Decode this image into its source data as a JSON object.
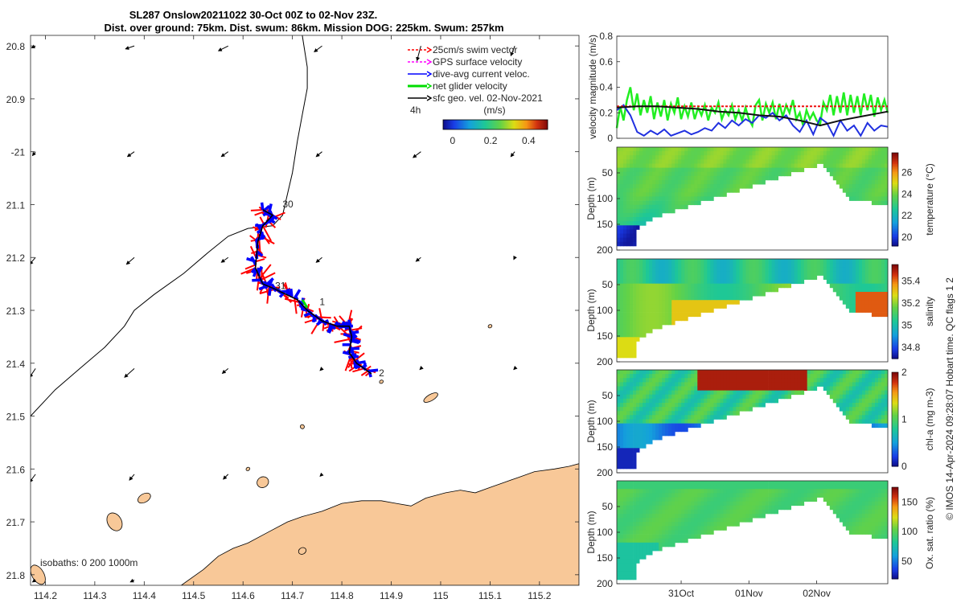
{
  "chart_data": [
    {
      "type": "map",
      "title_line1": "SL287 Onslow20211022 30-Oct 00Z to 02-Nov 23Z.",
      "title_line2": "Dist. over ground: 75km. Dist. swum: 86km. Mission DOG: 225km. Swum: 257km",
      "xlim": [
        114.17,
        115.28
      ],
      "ylim": [
        -21.82,
        -20.78
      ],
      "xticks": [
        114.2,
        114.3,
        114.4,
        114.5,
        114.6,
        114.7,
        114.8,
        114.9,
        115,
        115.1,
        115.2
      ],
      "xtick_labels": [
        "114.2",
        "114.3",
        "114.4",
        "114.5",
        "114.6",
        "114.7",
        "114.8",
        "114.9",
        "115",
        "115.1",
        "115.2"
      ],
      "yticks": [
        -20.8,
        -20.9,
        -21,
        -21.1,
        -21.2,
        -21.3,
        -21.4,
        -21.5,
        -21.6,
        -21.7,
        -21.8
      ],
      "ytick_labels": [
        "20.8",
        "20.9",
        "-21",
        "21.1",
        "21.2",
        "21.3",
        "21.4",
        "21.5",
        "21.6",
        "21.7",
        "21.8"
      ],
      "legend": {
        "location": "top-right",
        "entries": [
          {
            "label": "25cm/s swim vector",
            "color": "#ff0000",
            "style": "dashed"
          },
          {
            "label": "GPS surface velocity",
            "color": "#ff00ff",
            "style": "dashed"
          },
          {
            "label": "dive-avg current veloc.",
            "color": "#0000ff",
            "style": "solid"
          },
          {
            "label": "net glider velocity",
            "color": "#00dd00",
            "style": "thick"
          },
          {
            "label": "sfc geo. vel. 02-Nov-2021",
            "color": "#000000",
            "style": "solid"
          }
        ],
        "extra": "4h"
      },
      "colorbar": {
        "label": "(m/s)",
        "min": -0.05,
        "max": 0.5,
        "ticks": [
          0,
          0.2,
          0.4
        ],
        "tick_labels": [
          "0",
          "0.2",
          "0.4"
        ]
      },
      "isobath_label": "isobaths: 0   200  1000m",
      "track_labels": [
        "30",
        "31",
        "1",
        "2"
      ],
      "track": [
        [
          114.64,
          -21.11
        ],
        [
          114.66,
          -21.12
        ],
        [
          114.64,
          -21.14
        ],
        [
          114.63,
          -21.17
        ],
        [
          114.625,
          -21.22
        ],
        [
          114.64,
          -21.25
        ],
        [
          114.665,
          -21.26
        ],
        [
          114.71,
          -21.28
        ],
        [
          114.73,
          -21.3
        ],
        [
          114.76,
          -21.32
        ],
        [
          114.79,
          -21.33
        ],
        [
          114.815,
          -21.33
        ],
        [
          114.82,
          -21.35
        ],
        [
          114.815,
          -21.38
        ],
        [
          114.83,
          -21.4
        ],
        [
          114.86,
          -21.42
        ]
      ],
      "coastline_main": [
        [
          114.475,
          -21.82
        ],
        [
          114.52,
          -21.79
        ],
        [
          114.55,
          -21.765
        ],
        [
          114.58,
          -21.75
        ],
        [
          114.61,
          -21.74
        ],
        [
          114.65,
          -21.72
        ],
        [
          114.69,
          -21.7
        ],
        [
          114.72,
          -21.69
        ],
        [
          114.76,
          -21.68
        ],
        [
          114.8,
          -21.665
        ],
        [
          114.84,
          -21.66
        ],
        [
          114.88,
          -21.66
        ],
        [
          114.91,
          -21.665
        ],
        [
          114.94,
          -21.67
        ],
        [
          114.97,
          -21.655
        ],
        [
          115.01,
          -21.645
        ],
        [
          115.04,
          -21.64
        ],
        [
          115.07,
          -21.645
        ],
        [
          115.1,
          -21.635
        ],
        [
          115.13,
          -21.625
        ],
        [
          115.16,
          -21.615
        ],
        [
          115.19,
          -21.605
        ],
        [
          115.23,
          -21.6
        ],
        [
          115.26,
          -21.595
        ],
        [
          115.28,
          -21.59
        ]
      ],
      "coastline_mainland_edge": [
        [
          115.28,
          -21.82
        ]
      ],
      "isobath_200m": [
        [
          114.17,
          -21.5
        ],
        [
          114.22,
          -21.45
        ],
        [
          114.27,
          -21.41
        ],
        [
          114.32,
          -21.37
        ],
        [
          114.36,
          -21.33
        ],
        [
          114.38,
          -21.3
        ],
        [
          114.42,
          -21.27
        ],
        [
          114.48,
          -21.23
        ],
        [
          114.53,
          -21.19
        ],
        [
          114.57,
          -21.16
        ],
        [
          114.61,
          -21.145
        ],
        [
          114.66,
          -21.14
        ],
        [
          114.68,
          -21.12
        ],
        [
          114.69,
          -21.08
        ],
        [
          114.7,
          -21.04
        ],
        [
          114.71,
          -20.98
        ],
        [
          114.72,
          -20.93
        ],
        [
          114.73,
          -20.88
        ],
        [
          114.73,
          -20.84
        ],
        [
          114.72,
          -20.78
        ]
      ],
      "islands": [
        {
          "center": [
            114.98,
            -21.465
          ],
          "rx": 0.016,
          "ry": 0.006
        },
        {
          "center": [
            114.4,
            -21.655
          ],
          "rx": 0.014,
          "ry": 0.008
        },
        {
          "center": [
            114.34,
            -21.7
          ],
          "rx": 0.014,
          "ry": 0.018
        },
        {
          "center": [
            114.64,
            -21.625
          ],
          "rx": 0.012,
          "ry": 0.01
        },
        {
          "center": [
            114.72,
            -21.755
          ],
          "rx": 0.008,
          "ry": 0.006
        },
        {
          "center": [
            114.185,
            -21.8
          ],
          "rx": 0.012,
          "ry": 0.02
        },
        {
          "center": [
            114.61,
            -21.6
          ],
          "rx": 0.004,
          "ry": 0.003
        },
        {
          "center": [
            114.72,
            -21.52
          ],
          "rx": 0.004,
          "ry": 0.004
        },
        {
          "center": [
            115.1,
            -21.33
          ],
          "rx": 0.004,
          "ry": 0.003
        },
        {
          "center": [
            114.88,
            -21.435
          ],
          "rx": 0.004,
          "ry": 0.003
        }
      ],
      "vector_grid": [
        [
          114.18,
          -20.8,
          0.008,
          0.004
        ],
        [
          114.38,
          -20.8,
          0.018,
          0.006
        ],
        [
          114.57,
          -20.8,
          0.02,
          0.01
        ],
        [
          114.76,
          -20.8,
          0.016,
          0.012
        ],
        [
          114.96,
          -20.8,
          0.008,
          0.03
        ],
        [
          115.15,
          -20.8,
          0.008,
          0.02
        ],
        [
          114.18,
          -21.0,
          0.006,
          0.008
        ],
        [
          114.38,
          -21.0,
          0.014,
          0.01
        ],
        [
          114.57,
          -21.0,
          0.014,
          0.01
        ],
        [
          114.76,
          -21.0,
          0.012,
          0.01
        ],
        [
          114.96,
          -21.0,
          0.016,
          0.012
        ],
        [
          115.15,
          -21.0,
          0.008,
          0.01
        ],
        [
          114.18,
          -21.2,
          0.012,
          0.014
        ],
        [
          114.38,
          -21.2,
          0.016,
          0.014
        ],
        [
          114.57,
          -21.2,
          0.014,
          0.01
        ],
        [
          114.76,
          -21.2,
          0.012,
          0.01
        ],
        [
          114.96,
          -21.2,
          0.01,
          0.008
        ],
        [
          115.15,
          -21.2,
          0.002,
          0.004
        ],
        [
          114.18,
          -21.41,
          0.012,
          0.018
        ],
        [
          114.38,
          -21.41,
          0.02,
          0.018
        ],
        [
          114.57,
          -21.41,
          0.012,
          0.01
        ],
        [
          114.76,
          -21.41,
          0.004,
          0.004
        ],
        [
          114.96,
          -21.41,
          0.002,
          0.002
        ],
        [
          115.15,
          -21.41,
          0.002,
          0.002
        ],
        [
          114.18,
          -21.61,
          0.012,
          0.016
        ],
        [
          114.38,
          -21.61,
          0.01,
          0.012
        ],
        [
          114.57,
          -21.61,
          0.01,
          0.01
        ],
        [
          114.76,
          -21.61,
          0.004,
          0.004
        ],
        [
          114.18,
          -21.81,
          0.006,
          0.004
        ],
        [
          114.38,
          -21.81,
          0.008,
          0.004
        ]
      ]
    },
    {
      "type": "line",
      "ylabel": "velocity magnitude (m/s)",
      "ylim": [
        0,
        0.8
      ],
      "yticks": [
        0,
        0.2,
        0.4,
        0.6,
        0.8
      ],
      "ytick_labels": [
        "0",
        "0.2",
        "0.4",
        "0.6",
        "0.8"
      ],
      "xlim_days": [
        0,
        4
      ],
      "series": [
        {
          "name": "net glider velocity",
          "color": "#22ee22",
          "x": [
            0.0,
            0.05,
            0.1,
            0.15,
            0.2,
            0.25,
            0.3,
            0.35,
            0.4,
            0.45,
            0.5,
            0.55,
            0.6,
            0.65,
            0.7,
            0.75,
            0.8,
            0.85,
            0.9,
            0.95,
            1.0,
            1.05,
            1.1,
            1.15,
            1.2,
            1.25,
            1.3,
            1.35,
            1.4,
            1.45,
            1.5,
            1.55,
            1.6,
            1.65,
            1.7,
            1.75,
            1.8,
            1.85,
            1.9,
            1.95,
            2.0,
            2.05,
            2.1,
            2.15,
            2.2,
            2.25,
            2.3,
            2.35,
            2.4,
            2.45,
            2.5,
            2.55,
            2.6,
            2.65,
            2.7,
            2.75,
            2.8,
            2.85,
            2.9,
            2.95,
            3.0,
            3.05,
            3.1,
            3.15,
            3.2,
            3.25,
            3.3,
            3.35,
            3.4,
            3.45,
            3.5,
            3.55,
            3.6,
            3.65,
            3.7,
            3.75,
            3.8,
            3.85,
            3.9,
            3.95,
            4.0
          ],
          "values": [
            0.08,
            0.25,
            0.14,
            0.3,
            0.4,
            0.22,
            0.35,
            0.18,
            0.3,
            0.2,
            0.33,
            0.15,
            0.28,
            0.17,
            0.3,
            0.14,
            0.27,
            0.2,
            0.32,
            0.15,
            0.25,
            0.17,
            0.28,
            0.15,
            0.24,
            0.18,
            0.26,
            0.14,
            0.24,
            0.2,
            0.28,
            0.15,
            0.22,
            0.18,
            0.26,
            0.15,
            0.22,
            0.14,
            0.24,
            0.15,
            0.1,
            0.26,
            0.3,
            0.14,
            0.27,
            0.2,
            0.28,
            0.15,
            0.27,
            0.17,
            0.26,
            0.2,
            0.3,
            0.15,
            0.2,
            0.1,
            0.22,
            0.15,
            0.2,
            0.14,
            0.11,
            0.28,
            0.22,
            0.34,
            0.18,
            0.33,
            0.2,
            0.36,
            0.18,
            0.34,
            0.2,
            0.33,
            0.18,
            0.35,
            0.22,
            0.34,
            0.17,
            0.32,
            0.22,
            0.3,
            0.2
          ]
        },
        {
          "name": "dive-avg current veloc.",
          "color": "#2030e0",
          "x": [
            0.0,
            0.1,
            0.2,
            0.3,
            0.4,
            0.5,
            0.6,
            0.7,
            0.8,
            0.9,
            1.0,
            1.1,
            1.2,
            1.3,
            1.4,
            1.5,
            1.6,
            1.7,
            1.8,
            1.9,
            2.0,
            2.1,
            2.2,
            2.3,
            2.4,
            2.5,
            2.6,
            2.7,
            2.8,
            2.9,
            3.0,
            3.1,
            3.2,
            3.3,
            3.4,
            3.5,
            3.6,
            3.7,
            3.8,
            3.9,
            4.0
          ],
          "values": [
            0.22,
            0.26,
            0.18,
            0.05,
            0.02,
            0.06,
            0.03,
            0.07,
            0.02,
            0.04,
            0.06,
            0.03,
            0.05,
            0.08,
            0.06,
            0.12,
            0.08,
            0.14,
            0.1,
            0.15,
            0.12,
            0.18,
            0.16,
            0.2,
            0.14,
            0.18,
            0.1,
            0.05,
            0.14,
            0.03,
            0.16,
            0.12,
            0.02,
            0.14,
            0.06,
            0.1,
            0.02,
            0.12,
            0.06,
            0.1,
            0.09
          ]
        },
        {
          "name": "swim speed",
          "color": "#ee1111",
          "style": "dashed",
          "x": [
            0.0,
            4.0
          ],
          "values": [
            0.25,
            0.25
          ]
        },
        {
          "name": "sfc geo. vel.",
          "color": "#111111",
          "x": [
            0.0,
            0.3,
            0.6,
            0.9,
            1.2,
            1.5,
            1.8,
            2.1,
            2.4,
            2.7,
            3.0,
            3.3,
            3.6,
            3.9,
            4.0
          ],
          "values": [
            0.24,
            0.25,
            0.25,
            0.24,
            0.23,
            0.21,
            0.2,
            0.18,
            0.17,
            0.14,
            0.1,
            0.14,
            0.17,
            0.2,
            0.21
          ]
        }
      ]
    },
    {
      "type": "heatmap",
      "variable": "temperature",
      "ylabel": "Depth (m)",
      "colorbar_label": "temperature (°C)",
      "ylim": [
        200,
        0
      ],
      "yticks": [
        50,
        100,
        150,
        200
      ],
      "ytick_labels": [
        "50",
        "100",
        "150",
        "200"
      ],
      "clim": [
        19.2,
        27.8
      ],
      "cticks": [
        20,
        22,
        24,
        26
      ],
      "ctick_labels": [
        "20",
        "22",
        "24",
        "26"
      ],
      "colormap": "parula-jet"
    },
    {
      "type": "heatmap",
      "variable": "salinity",
      "ylabel": "Depth (m)",
      "colorbar_label": "salinity",
      "ylim": [
        200,
        0
      ],
      "yticks": [
        50,
        100,
        150,
        200
      ],
      "ytick_labels": [
        "50",
        "100",
        "150",
        "200"
      ],
      "clim": [
        34.7,
        35.55
      ],
      "cticks": [
        34.8,
        35,
        35.2,
        35.4
      ],
      "ctick_labels": [
        "34.8",
        "35",
        "35.2",
        "35.4"
      ],
      "colormap": "parula-jet"
    },
    {
      "type": "heatmap",
      "variable": "chl-a",
      "ylabel": "Depth (m)",
      "colorbar_label": "chl-a (mg m-3)",
      "ylim": [
        200,
        0
      ],
      "yticks": [
        50,
        100,
        150,
        200
      ],
      "ytick_labels": [
        "50",
        "100",
        "150",
        "200"
      ],
      "clim": [
        0,
        2
      ],
      "cticks": [
        0,
        1,
        2
      ],
      "ctick_labels": [
        "0",
        "1",
        "2"
      ],
      "colormap": "parula-jet"
    },
    {
      "type": "heatmap",
      "variable": "oxygen saturation",
      "ylabel": "Depth (m)",
      "colorbar_label": "Ox. sat. ratio (%)",
      "ylim": [
        200,
        0
      ],
      "yticks": [
        50,
        100,
        150,
        200
      ],
      "ytick_labels": [
        "50",
        "100",
        "150",
        "200"
      ],
      "clim": [
        20,
        175
      ],
      "cticks": [
        50,
        100,
        150
      ],
      "ctick_labels": [
        "50",
        "100",
        "150"
      ],
      "colormap": "parula-jet",
      "xticks_days": [
        1.0,
        2.0,
        3.0
      ],
      "xtick_labels": [
        "31Oct",
        "01Nov",
        "02Nov"
      ]
    }
  ],
  "side_caption": "© IMOS 14-Apr-2024 09:28:07 Hobart time. QC flags 1  2",
  "colors": {
    "land": "#f8c898",
    "swim_vector": "#ff0000",
    "dive_avg": "#0000ff",
    "net_velocity": "#00dd00"
  }
}
